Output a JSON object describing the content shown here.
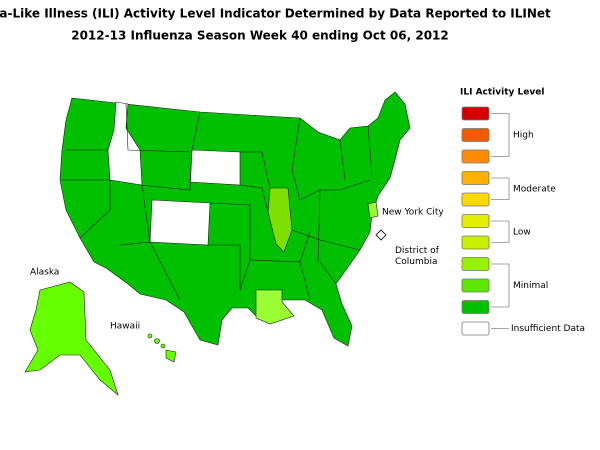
{
  "title": "Influenza-Like Illness (ILI) Activity Level Indicator Determined by Data Reported to ILINet",
  "subtitle": "2012-13  Influenza Season Week  40 ending Oct 06, 2012",
  "map_labels": {
    "alaska": "Alaska",
    "hawaii": "Hawaii",
    "nyc": "New York City",
    "dc": "District of\nColumbia"
  },
  "legend": {
    "title": "ILI Activity Level",
    "groups": [
      {
        "label": "High",
        "colors": [
          "#d40000",
          "#f05a00",
          "#ff8c00"
        ]
      },
      {
        "label": "Moderate",
        "colors": [
          "#ffb000",
          "#ffd800"
        ]
      },
      {
        "label": "Low",
        "colors": [
          "#e6ee00",
          "#c8f000"
        ]
      },
      {
        "label": "Minimal",
        "colors": [
          "#96f000",
          "#5ce600",
          "#00c000"
        ]
      },
      {
        "label": "Insufficient Data",
        "colors": [
          "#ffffff"
        ]
      }
    ]
  }
}
